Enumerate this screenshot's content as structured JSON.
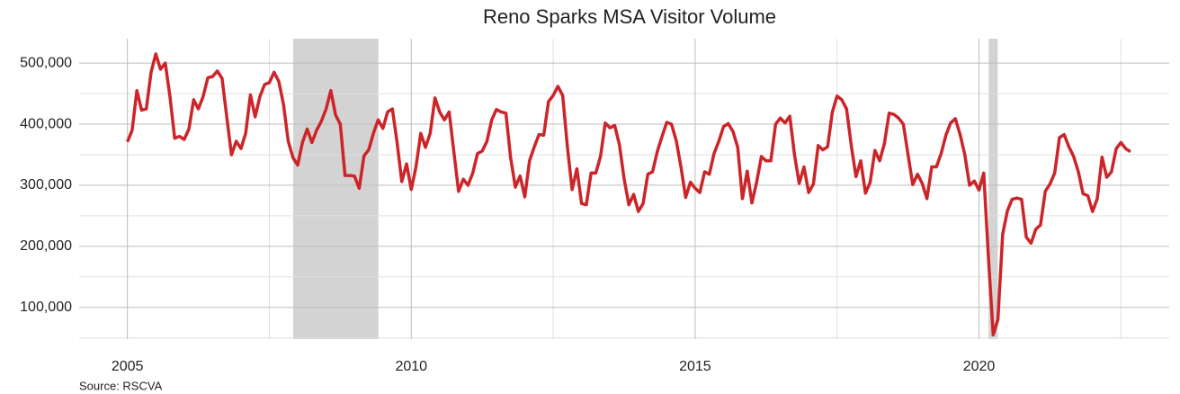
{
  "chart_data": {
    "type": "line",
    "title": "Reno Sparks MSA Visitor Volume",
    "source": "Source: RSCVA",
    "color": "#cc2529",
    "grid": true,
    "xlim": [
      2004.15,
      2023.35
    ],
    "ylim": [
      48000,
      540000
    ],
    "xticks": [
      2005,
      2010,
      2015,
      2020
    ],
    "xminor": [
      2007.5,
      2012.5,
      2017.5,
      2022.5
    ],
    "yticks": [
      {
        "value": 100000,
        "label": "100,000"
      },
      {
        "value": 200000,
        "label": "200,000"
      },
      {
        "value": 300000,
        "label": "300,000"
      },
      {
        "value": 400000,
        "label": "400,000"
      },
      {
        "value": 500000,
        "label": "500,000"
      }
    ],
    "yminor": [
      50000,
      150000,
      250000,
      350000,
      450000
    ],
    "shaded_periods": [
      [
        2007.92,
        2009.42
      ],
      [
        2020.17,
        2020.33
      ]
    ],
    "x": [
      2005,
      2005.083,
      2005.167,
      2005.25,
      2005.333,
      2005.417,
      2005.5,
      2005.583,
      2005.667,
      2005.75,
      2005.833,
      2005.917,
      2006,
      2006.083,
      2006.167,
      2006.25,
      2006.333,
      2006.417,
      2006.5,
      2006.583,
      2006.667,
      2006.75,
      2006.833,
      2006.917,
      2007,
      2007.083,
      2007.167,
      2007.25,
      2007.333,
      2007.417,
      2007.5,
      2007.583,
      2007.667,
      2007.75,
      2007.833,
      2007.917,
      2008,
      2008.083,
      2008.167,
      2008.25,
      2008.333,
      2008.417,
      2008.5,
      2008.583,
      2008.667,
      2008.75,
      2008.833,
      2008.917,
      2009,
      2009.083,
      2009.167,
      2009.25,
      2009.333,
      2009.417,
      2009.5,
      2009.583,
      2009.667,
      2009.75,
      2009.833,
      2009.917,
      2010,
      2010.083,
      2010.167,
      2010.25,
      2010.333,
      2010.417,
      2010.5,
      2010.583,
      2010.667,
      2010.75,
      2010.833,
      2010.917,
      2011,
      2011.083,
      2011.167,
      2011.25,
      2011.333,
      2011.417,
      2011.5,
      2011.583,
      2011.667,
      2011.75,
      2011.833,
      2011.917,
      2012,
      2012.083,
      2012.167,
      2012.25,
      2012.333,
      2012.417,
      2012.5,
      2012.583,
      2012.667,
      2012.75,
      2012.833,
      2012.917,
      2013,
      2013.083,
      2013.167,
      2013.25,
      2013.333,
      2013.417,
      2013.5,
      2013.583,
      2013.667,
      2013.75,
      2013.833,
      2013.917,
      2014,
      2014.083,
      2014.167,
      2014.25,
      2014.333,
      2014.417,
      2014.5,
      2014.583,
      2014.667,
      2014.75,
      2014.833,
      2014.917,
      2015,
      2015.083,
      2015.167,
      2015.25,
      2015.333,
      2015.417,
      2015.5,
      2015.583,
      2015.667,
      2015.75,
      2015.833,
      2015.917,
      2016,
      2016.083,
      2016.167,
      2016.25,
      2016.333,
      2016.417,
      2016.5,
      2016.583,
      2016.667,
      2016.75,
      2016.833,
      2016.917,
      2017,
      2017.083,
      2017.167,
      2017.25,
      2017.333,
      2017.417,
      2017.5,
      2017.583,
      2017.667,
      2017.75,
      2017.833,
      2017.917,
      2018,
      2018.083,
      2018.167,
      2018.25,
      2018.333,
      2018.417,
      2018.5,
      2018.583,
      2018.667,
      2018.75,
      2018.833,
      2018.917,
      2019,
      2019.083,
      2019.167,
      2019.25,
      2019.333,
      2019.417,
      2019.5,
      2019.583,
      2019.667,
      2019.75,
      2019.833,
      2019.917,
      2020,
      2020.083,
      2020.167,
      2020.25,
      2020.333,
      2020.417,
      2020.5,
      2020.583,
      2020.667,
      2020.75,
      2020.833,
      2020.917,
      2021,
      2021.083,
      2021.167,
      2021.25,
      2021.333,
      2021.417,
      2021.5,
      2021.583,
      2021.667,
      2021.75,
      2021.833,
      2021.917,
      2022,
      2022.083,
      2022.167,
      2022.25,
      2022.333,
      2022.417,
      2022.5,
      2022.583,
      2022.667
    ],
    "values": [
      371000,
      390000,
      455000,
      423000,
      425000,
      485000,
      515000,
      490000,
      500000,
      445000,
      377000,
      380000,
      375000,
      392000,
      440000,
      425000,
      445000,
      476000,
      478000,
      487000,
      475000,
      412000,
      350000,
      372000,
      360000,
      385000,
      448000,
      412000,
      445000,
      465000,
      468000,
      485000,
      470000,
      432000,
      372000,
      345000,
      333000,
      370000,
      392000,
      370000,
      390000,
      405000,
      425000,
      455000,
      415000,
      400000,
      316000,
      316000,
      315000,
      295000,
      348000,
      358000,
      385000,
      407000,
      393000,
      420000,
      425000,
      370000,
      306000,
      335000,
      293000,
      330000,
      385000,
      362000,
      385000,
      443000,
      420000,
      407000,
      420000,
      355000,
      290000,
      310000,
      300000,
      320000,
      352000,
      356000,
      372000,
      407000,
      424000,
      420000,
      418000,
      345000,
      297000,
      315000,
      281000,
      340000,
      363000,
      383000,
      382000,
      437000,
      447000,
      462000,
      447000,
      363000,
      293000,
      327000,
      270000,
      268000,
      320000,
      320000,
      347000,
      402000,
      394000,
      398000,
      366000,
      310000,
      268000,
      285000,
      257000,
      270000,
      318000,
      322000,
      355000,
      380000,
      403000,
      400000,
      373000,
      330000,
      280000,
      305000,
      295000,
      288000,
      322000,
      318000,
      352000,
      372000,
      396000,
      401000,
      388000,
      362000,
      278000,
      323000,
      271000,
      305000,
      347000,
      340000,
      340000,
      400000,
      410000,
      402000,
      413000,
      350000,
      303000,
      330000,
      288000,
      302000,
      365000,
      358000,
      363000,
      420000,
      446000,
      440000,
      425000,
      365000,
      314000,
      340000,
      287000,
      305000,
      357000,
      340000,
      368000,
      418000,
      416000,
      410000,
      400000,
      350000,
      301000,
      318000,
      303000,
      278000,
      330000,
      330000,
      352000,
      382000,
      402000,
      409000,
      383000,
      350000,
      300000,
      307000,
      292000,
      320000,
      180000,
      55000,
      80000,
      220000,
      258000,
      277000,
      279000,
      277000,
      215000,
      205000,
      228000,
      235000,
      290000,
      302000,
      320000,
      378000,
      383000,
      363000,
      347000,
      322000,
      286000,
      283000,
      257000,
      278000,
      346000,
      313000,
      322000,
      360000,
      370000,
      360000,
      355000
    ]
  }
}
